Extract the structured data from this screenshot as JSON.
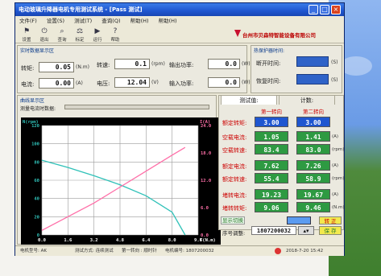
{
  "window": {
    "title": "电动玻璃升降器电机专用测试系统 - [Pass 测试]",
    "controls": [
      "_",
      "□",
      "×"
    ]
  },
  "menu": [
    "文件(F)",
    "设置(S)",
    "测试(T)",
    "查询(Q)",
    "帮助(H)",
    "帮助(H)"
  ],
  "toolbar": [
    {
      "icon": "flag-icon",
      "label": "设置"
    },
    {
      "icon": "power-icon",
      "label": "退出"
    },
    {
      "icon": "search-icon",
      "label": "查询"
    },
    {
      "icon": "scale-icon",
      "label": "标定"
    },
    {
      "icon": "run-icon",
      "label": "运行"
    },
    {
      "icon": "help-icon",
      "label": "帮助"
    }
  ],
  "brand": "台州市贝森特智能设备有限公司",
  "readings": {
    "title": "实时数据显示区",
    "torque_label": "转矩:",
    "torque_value": "0.05",
    "torque_unit": "(N.m)",
    "speed_label": "转速:",
    "speed_value": "0.1",
    "speed_unit": "(rpm)",
    "out_power_label": "输出功率:",
    "out_power_value": "0.0",
    "out_power_unit": "(W)",
    "current_label": "电流:",
    "current_value": "0.00",
    "current_unit": "(A)",
    "voltage_label": "电压:",
    "voltage_value": "12.04",
    "voltage_unit": "(V)",
    "in_power_label": "输入功率:",
    "in_power_value": "0.0",
    "in_power_unit": "(W)"
  },
  "heat": {
    "title": "热保护器时间:",
    "trip_label": "断开时间:",
    "trip_unit": "(S)",
    "restore_label": "恢复时间:",
    "restore_unit": "(S)"
  },
  "curve": {
    "title": "曲线显示区",
    "progress_label": "测量电流时数据:"
  },
  "tabs": [
    "测试值:",
    "计数:"
  ],
  "results": {
    "col1": "第一转向",
    "col2": "第二转向",
    "rows": [
      {
        "label": "额定转矩:",
        "v1": "3.00",
        "v2": "3.00",
        "unit": "",
        "color": "blue"
      },
      {
        "label": "空载电流:",
        "v1": "1.05",
        "v2": "1.41",
        "unit": "(A)",
        "color": "green"
      },
      {
        "label": "空载转速:",
        "v1": "83.4",
        "v2": "83.0",
        "unit": "(rpm)",
        "color": "green"
      },
      {
        "label": "额定电流:",
        "v1": "7.62",
        "v2": "7.26",
        "unit": "(A)",
        "color": "green"
      },
      {
        "label": "额定转速:",
        "v1": "55.4",
        "v2": "58.9",
        "unit": "(rpm)",
        "color": "green"
      },
      {
        "label": "堵转电流:",
        "v1": "19.23",
        "v2": "19.67",
        "unit": "(A)",
        "color": "green"
      },
      {
        "label": "堵转转矩:",
        "v1": "9.06",
        "v2": "9.46",
        "unit": "(N.m)",
        "color": "green"
      }
    ],
    "display_switch": "显示切换",
    "reverse_label": "转 正",
    "serial_label": "序号调整:",
    "serial_value": "1807200032",
    "save_label": "保 存"
  },
  "status": {
    "items": [
      "电机型号: AK",
      "测试方式: 连续测试",
      "第一转向 : 顺时针",
      "电机编号: 1807200032"
    ],
    "datetime": "2018-7-20  15:42"
  },
  "colors": {
    "speed": "#2fc1b8",
    "current": "#ff6fa8",
    "accent": "#1f56d0",
    "ok_green": "#2e9a42"
  },
  "chart_data": {
    "type": "line",
    "xlabel": "T(N.m)",
    "ylabel_left": "N(rpm)",
    "ylabel_right": "I(A)",
    "x_ticks": [
      "0.0",
      "1.6",
      "3.2",
      "4.8",
      "6.4",
      "8.0",
      "9.6"
    ],
    "y_left_ticks": [
      "0",
      "20",
      "40",
      "60",
      "80",
      "100",
      "120"
    ],
    "y_right_ticks": [
      "0.0",
      "6.0",
      "12.0",
      "18.0",
      "24.0"
    ],
    "xlim": [
      0,
      9.6
    ],
    "ylim_left": [
      0,
      120
    ],
    "ylim_right": [
      0,
      24
    ],
    "grid": true,
    "series": [
      {
        "color": "#2fc1b8",
        "x": [
          0.0,
          1.6,
          3.2,
          4.8,
          6.4,
          8.0,
          8.8
        ],
        "y": [
          82,
          74,
          65,
          55,
          43,
          25,
          0
        ]
      },
      {
        "color": "#ff6fa8",
        "x": [
          0.0,
          1.6,
          3.2,
          4.8,
          6.4,
          8.0,
          8.8
        ],
        "y": [
          1.0,
          4.0,
          7.0,
          10.5,
          14.0,
          17.5,
          19.2
        ]
      }
    ]
  }
}
